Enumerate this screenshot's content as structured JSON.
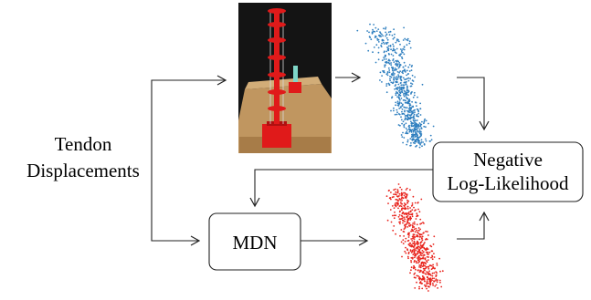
{
  "input": {
    "line1": "Tendon",
    "line2": "Displacements"
  },
  "model": {
    "label": "MDN"
  },
  "loss": {
    "line1": "Negative",
    "line2": "Log-Likelihood"
  },
  "colors": {
    "measured_points": "#2f7fbf",
    "predicted_points": "#e8231c",
    "robot_body": "#e01a1a",
    "photo_background": "#141414",
    "base_board": "#c09660",
    "arrow": "#222222"
  },
  "icons": {
    "robot_photo": "tendon-robot-photo",
    "measured_cloud": "blue-point-cloud",
    "predicted_cloud": "red-point-cloud"
  }
}
